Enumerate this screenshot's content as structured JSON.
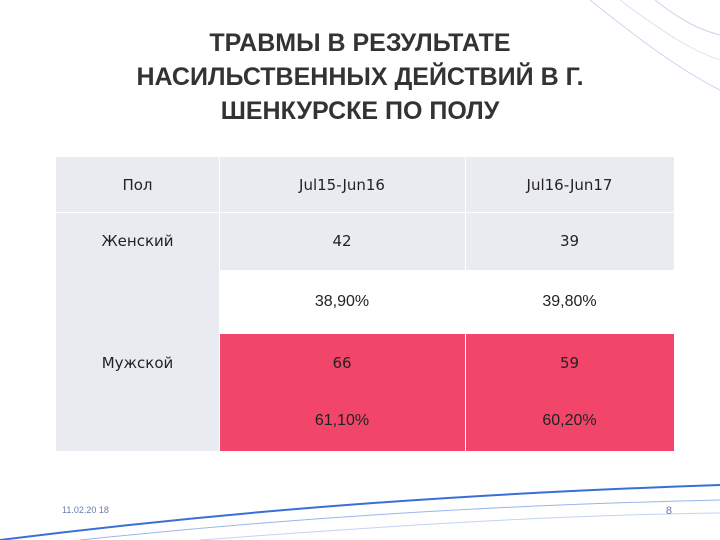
{
  "slide": {
    "title": "ТРАВМЫ В РЕЗУЛЬТАТЕ НАСИЛЬСТВЕННЫХ ДЕЙСТВИЙ В Г. ШЕНКУРСКЕ ПО ПОЛУ",
    "footer_date": "11.02.20 18",
    "page_number": "8"
  },
  "table": {
    "header": [
      "Пол",
      "Jul15-Jun16",
      "Jul16-Jun17"
    ],
    "rows": [
      [
        "Женский",
        "42",
        "39"
      ],
      [
        "",
        "38,90%",
        "39,80%"
      ],
      [
        "Мужской",
        "66",
        "59"
      ],
      [
        "",
        "61,10%",
        "60,20%"
      ]
    ]
  },
  "colors": {
    "highlight": "#f2456a",
    "cell_background": "#e9ebf0",
    "title": "#333333"
  }
}
